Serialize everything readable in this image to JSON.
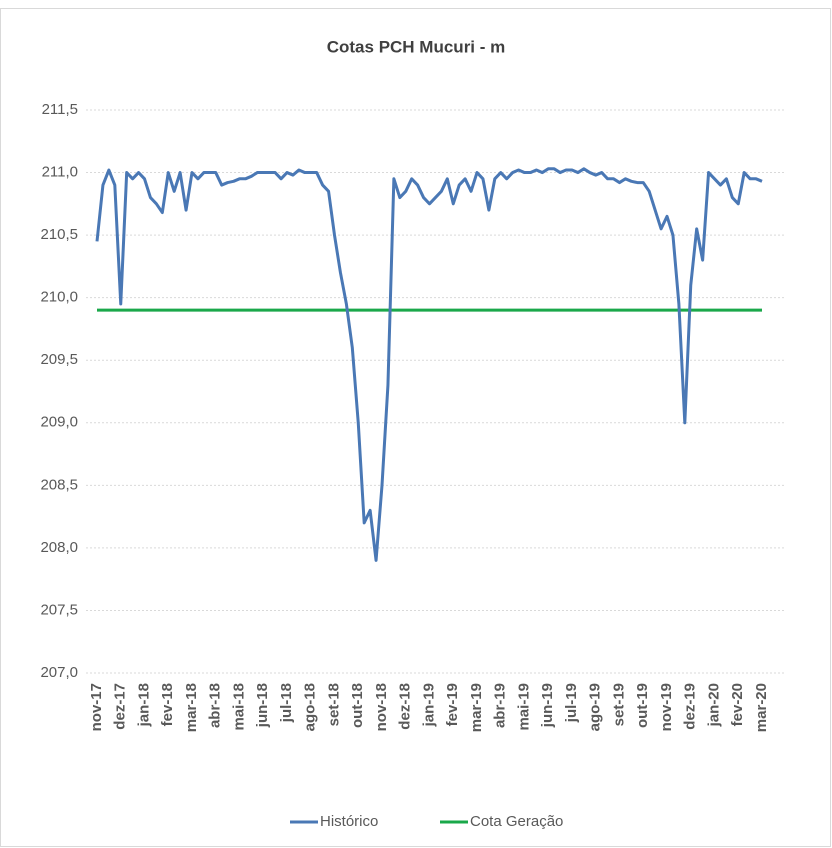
{
  "chart_data": {
    "type": "line",
    "title": "Cotas PCH Mucuri - m",
    "categories": [
      "nov-17",
      null,
      null,
      null,
      "dez-17",
      null,
      null,
      null,
      "jan-18",
      null,
      null,
      null,
      "fev-18",
      null,
      null,
      null,
      "mar-18",
      null,
      null,
      null,
      "abr-18",
      null,
      null,
      null,
      "mai-18",
      null,
      null,
      null,
      "jun-18",
      null,
      null,
      null,
      "jul-18",
      null,
      null,
      null,
      "ago-18",
      null,
      null,
      null,
      "set-18",
      null,
      null,
      null,
      "out-18",
      null,
      null,
      null,
      "nov-18",
      null,
      null,
      null,
      "dez-18",
      null,
      null,
      null,
      "jan-19",
      null,
      null,
      null,
      "fev-19",
      null,
      null,
      null,
      "mar-19",
      null,
      null,
      null,
      "abr-19",
      null,
      null,
      null,
      "mai-19",
      null,
      null,
      null,
      "jun-19",
      null,
      null,
      null,
      "jul-19",
      null,
      null,
      null,
      "ago-19",
      null,
      null,
      null,
      "set-19",
      null,
      null,
      null,
      "out-19",
      null,
      null,
      null,
      "nov-19",
      null,
      null,
      null,
      "dez-19",
      null,
      null,
      null,
      "jan-20",
      null,
      null,
      null,
      "fev-20",
      null,
      null,
      null,
      "mar-20"
    ],
    "series": [
      {
        "name": "Histórico",
        "color": "#4a78b5",
        "values": [
          210.45,
          210.9,
          211.02,
          210.9,
          209.95,
          211.0,
          210.95,
          211.0,
          210.95,
          210.8,
          210.75,
          210.68,
          211.0,
          210.85,
          211.0,
          210.7,
          211.0,
          210.95,
          211.0,
          211.0,
          211.0,
          210.9,
          210.92,
          210.93,
          210.95,
          210.95,
          210.97,
          211.0,
          211.0,
          211.0,
          211.0,
          210.95,
          211.0,
          210.98,
          211.02,
          211.0,
          211.0,
          211.0,
          210.9,
          210.85,
          210.5,
          210.2,
          209.95,
          209.6,
          209.0,
          208.2,
          208.3,
          207.9,
          208.5,
          209.3,
          210.95,
          210.8,
          210.85,
          210.95,
          210.9,
          210.8,
          210.75,
          210.8,
          210.85,
          210.95,
          210.75,
          210.9,
          210.95,
          210.85,
          211.0,
          210.95,
          210.7,
          210.95,
          211.0,
          210.95,
          211.0,
          211.02,
          211.0,
          211.0,
          211.02,
          211.0,
          211.03,
          211.03,
          211.0,
          211.02,
          211.02,
          211.0,
          211.03,
          211.0,
          210.98,
          211.0,
          210.95,
          210.95,
          210.92,
          210.95,
          210.93,
          210.92,
          210.92,
          210.85,
          210.7,
          210.55,
          210.65,
          210.5,
          209.95,
          209.0,
          210.1,
          210.55,
          210.3,
          211.0,
          210.95,
          210.9,
          210.95,
          210.8,
          210.75,
          211.0,
          210.95,
          210.95,
          210.93
        ]
      },
      {
        "name": "Cota Geração",
        "color": "#1aa84a",
        "values": [
          209.9,
          209.9,
          209.9,
          209.9,
          209.9,
          209.9,
          209.9,
          209.9,
          209.9,
          209.9,
          209.9,
          209.9,
          209.9,
          209.9,
          209.9,
          209.9,
          209.9,
          209.9,
          209.9,
          209.9,
          209.9,
          209.9,
          209.9,
          209.9,
          209.9,
          209.9,
          209.9,
          209.9,
          209.9,
          209.9,
          209.9,
          209.9,
          209.9,
          209.9,
          209.9,
          209.9,
          209.9,
          209.9,
          209.9,
          209.9,
          209.9,
          209.9,
          209.9,
          209.9,
          209.9,
          209.9,
          209.9,
          209.9,
          209.9,
          209.9,
          209.9,
          209.9,
          209.9,
          209.9,
          209.9,
          209.9,
          209.9,
          209.9,
          209.9,
          209.9,
          209.9,
          209.9,
          209.9,
          209.9,
          209.9,
          209.9,
          209.9,
          209.9,
          209.9,
          209.9,
          209.9,
          209.9,
          209.9,
          209.9,
          209.9,
          209.9,
          209.9,
          209.9,
          209.9,
          209.9,
          209.9,
          209.9,
          209.9,
          209.9,
          209.9,
          209.9,
          209.9,
          209.9,
          209.9,
          209.9,
          209.9,
          209.9,
          209.9,
          209.9,
          209.9,
          209.9,
          209.9,
          209.9,
          209.9,
          209.9,
          209.9,
          209.9,
          209.9,
          209.9,
          209.9,
          209.9,
          209.9,
          209.9,
          209.9,
          209.9,
          209.9,
          209.9,
          209.9
        ]
      }
    ],
    "ylim": [
      207.0,
      211.5
    ],
    "yticks": [
      {
        "value": 207.0,
        "label": "207,0"
      },
      {
        "value": 207.5,
        "label": "207,5"
      },
      {
        "value": 208.0,
        "label": "208,0"
      },
      {
        "value": 208.5,
        "label": "208,5"
      },
      {
        "value": 209.0,
        "label": "209,0"
      },
      {
        "value": 209.5,
        "label": "209,5"
      },
      {
        "value": 210.0,
        "label": "210,0"
      },
      {
        "value": 210.5,
        "label": "210,5"
      },
      {
        "value": 211.0,
        "label": "211,0"
      },
      {
        "value": 211.5,
        "label": "211,5"
      }
    ],
    "grid": true,
    "legend": "bottom"
  }
}
